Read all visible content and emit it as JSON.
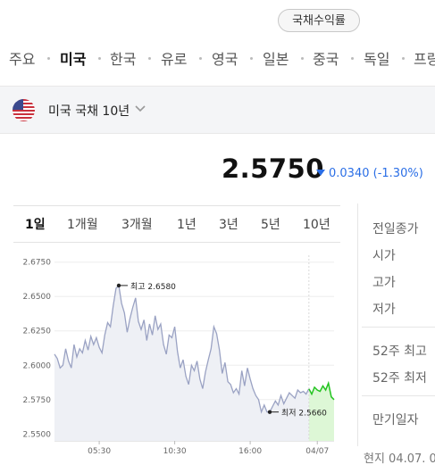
{
  "header": {
    "pill_label": "국채수익률"
  },
  "tabs": [
    "주요",
    "미국",
    "한국",
    "유로",
    "영국",
    "일본",
    "중국",
    "독일",
    "프랑"
  ],
  "active_tab": "미국",
  "selector": {
    "label": "미국 국채 10년",
    "icon": "chevron-down-icon",
    "flag_icon": "us-flag-icon"
  },
  "price": {
    "value": "2.5750",
    "change": "0.0340",
    "change_pct": "(-1.30%)",
    "direction_icon": "triangle-down-icon"
  },
  "colors": {
    "down": "#2a6ee6",
    "up": "#23c420",
    "line": "#9aa2c3"
  },
  "range_tabs": [
    "1일",
    "1개월",
    "3개월",
    "1년",
    "3년",
    "5년",
    "10년"
  ],
  "active_range": "1일",
  "stats": {
    "group1": [
      "전일종가",
      "시가",
      "고가",
      "저가"
    ],
    "group2": [
      "52주 최고",
      "52주 최저"
    ],
    "group3": [
      "만기일자"
    ]
  },
  "footnote": "현지 04.07. 0",
  "chart_data": {
    "type": "line",
    "title": "",
    "xlabel": "",
    "ylabel": "",
    "ylim": [
      2.545,
      2.68
    ],
    "y_ticks": [
      "2.6750",
      "2.6500",
      "2.6250",
      "2.6000",
      "2.5750",
      "2.5500"
    ],
    "y_tick_values": [
      2.675,
      2.65,
      2.625,
      2.6,
      2.575,
      2.55
    ],
    "x_ticks": [
      "05:30",
      "10:30",
      "16:00",
      "04/07"
    ],
    "x_tick_values": [
      0.16,
      0.43,
      0.7,
      0.94
    ],
    "annotations": {
      "high": {
        "label": "최고 2.6580",
        "x": 0.23,
        "y": 2.658
      },
      "low": {
        "label": "최저 2.5660",
        "x": 0.77,
        "y": 2.566
      }
    },
    "series": [
      {
        "x": [
          0.0,
          0.01,
          0.02,
          0.03,
          0.04,
          0.05,
          0.06,
          0.07,
          0.08,
          0.09,
          0.1,
          0.11,
          0.12,
          0.13,
          0.14,
          0.15,
          0.16,
          0.17,
          0.18,
          0.19,
          0.2,
          0.21,
          0.22,
          0.23,
          0.24,
          0.25,
          0.26,
          0.27,
          0.28,
          0.29,
          0.3,
          0.31,
          0.32,
          0.33,
          0.34,
          0.35,
          0.36,
          0.37,
          0.38,
          0.39,
          0.4,
          0.41,
          0.42,
          0.43,
          0.44,
          0.45,
          0.46,
          0.47,
          0.48,
          0.49,
          0.5,
          0.51,
          0.52,
          0.53,
          0.54,
          0.55,
          0.56,
          0.57,
          0.58,
          0.59,
          0.6,
          0.61,
          0.62,
          0.63,
          0.64,
          0.65,
          0.66,
          0.67,
          0.68,
          0.69,
          0.7,
          0.71,
          0.72,
          0.73,
          0.74,
          0.75,
          0.76,
          0.77,
          0.78,
          0.79,
          0.8,
          0.81,
          0.82,
          0.83,
          0.84,
          0.85,
          0.86,
          0.87,
          0.88,
          0.89,
          0.9,
          0.91
        ],
        "values": [
          2.608,
          2.605,
          2.598,
          2.6,
          2.612,
          2.603,
          2.598,
          2.615,
          2.606,
          2.612,
          2.609,
          2.618,
          2.611,
          2.621,
          2.615,
          2.62,
          2.613,
          2.609,
          2.622,
          2.631,
          2.628,
          2.643,
          2.656,
          2.658,
          2.645,
          2.638,
          2.624,
          2.634,
          2.642,
          2.649,
          2.632,
          2.626,
          2.633,
          2.618,
          2.63,
          2.622,
          2.636,
          2.626,
          2.63,
          2.615,
          2.608,
          2.622,
          2.62,
          2.628,
          2.61,
          2.598,
          2.604,
          2.592,
          2.586,
          2.6,
          2.596,
          2.603,
          2.59,
          2.583,
          2.595,
          2.604,
          2.612,
          2.628,
          2.623,
          2.611,
          2.594,
          2.602,
          2.588,
          2.586,
          2.58,
          2.583,
          2.579,
          2.596,
          2.585,
          2.598,
          2.59,
          2.583,
          2.578,
          2.575,
          2.566,
          2.571,
          2.566,
          2.566,
          2.57,
          2.574,
          2.571,
          2.578,
          2.572,
          2.576,
          2.58,
          2.578,
          2.576,
          2.582,
          2.58,
          2.581,
          2.579,
          2.583
        ]
      },
      {
        "x": [
          0.91,
          0.92,
          0.93,
          0.94,
          0.95,
          0.96,
          0.97,
          0.98,
          0.99,
          1.0
        ],
        "values": [
          2.583,
          2.579,
          2.584,
          2.582,
          2.581,
          2.585,
          2.582,
          2.587,
          2.577,
          2.575
        ]
      }
    ]
  }
}
